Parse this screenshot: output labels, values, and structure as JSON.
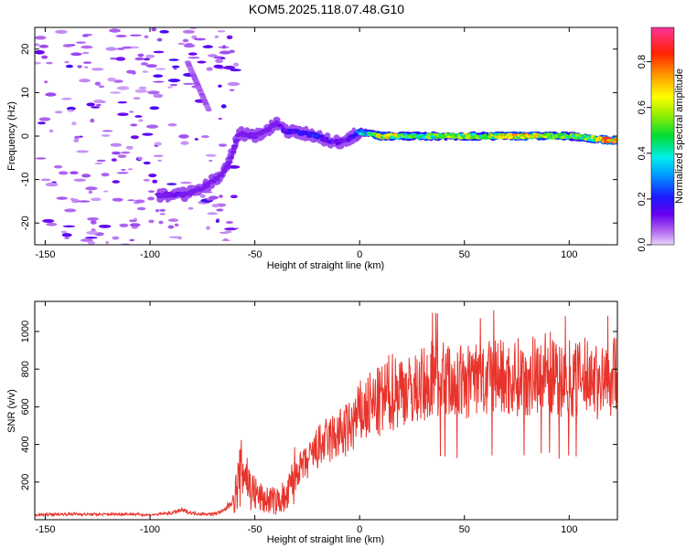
{
  "figure": {
    "title": "KOM5.2025.118.07.48.G10"
  },
  "chart_data": [
    {
      "type": "heatmap",
      "xlabel": "Height of straight line (km)",
      "ylabel": "Frequency (Hz)",
      "xlim": [
        -155,
        123
      ],
      "ylim": [
        -25,
        25
      ],
      "xticks": [
        -150,
        -100,
        -50,
        0,
        50,
        100
      ],
      "yticks": [
        -20,
        -10,
        0,
        10,
        20
      ],
      "colorbar": {
        "label": "Normalized spectral amplitude",
        "range": [
          0,
          0.95
        ],
        "ticks": [
          "0.0",
          "0.2",
          "0.4",
          "0.6",
          "0.8"
        ],
        "colormap": "rainbow (magenta-blue-cyan-green-yellow-red-pink)"
      },
      "ridge": {
        "x": [
          -95,
          -85,
          -80,
          -72,
          -66,
          -62,
          -58,
          -55,
          -50,
          -45,
          -40,
          -35,
          -30,
          -25,
          -20,
          -15,
          -10,
          -5,
          0,
          10,
          20,
          30,
          40,
          50,
          60,
          70,
          80,
          90,
          100,
          110,
          120
        ],
        "freq": [
          -13.5,
          -13.5,
          -13,
          -11,
          -9,
          -6,
          0.5,
          0.5,
          0,
          1,
          3,
          1,
          1,
          0.5,
          0,
          -1,
          -1.5,
          -0.5,
          1,
          0,
          0,
          0,
          0,
          0,
          0,
          0,
          0,
          0,
          0,
          -0.5,
          -1
        ],
        "amplitude": [
          0.1,
          0.15,
          0.1,
          0.05,
          0.05,
          0.08,
          0.1,
          0.12,
          0.1,
          0.08,
          0.06,
          0.2,
          0.2,
          0.2,
          0.25,
          0.15,
          0.15,
          0.15,
          0.3,
          0.75,
          0.6,
          0.55,
          0.55,
          0.65,
          0.6,
          0.7,
          0.75,
          0.65,
          0.55,
          0.6,
          0.85
        ]
      }
    },
    {
      "type": "line",
      "xlabel": "Height of straight line (km)",
      "ylabel": "SNR (v/v)",
      "xlim": [
        -155,
        123
      ],
      "ylim": [
        0,
        1160
      ],
      "xticks": [
        -150,
        -100,
        -50,
        0,
        50,
        100
      ],
      "yticks": [
        200,
        400,
        600,
        800,
        1000
      ],
      "color": "#e8332b",
      "series": [
        {
          "x": [
            -155,
            -140,
            -125,
            -110,
            -100,
            -90,
            -85,
            -80,
            -75,
            -70,
            -65,
            -60,
            -57,
            -55,
            -52,
            -48,
            -45,
            -42,
            -40,
            -37,
            -35,
            -32,
            -30,
            -25,
            -20,
            -15,
            -10,
            -5,
            0,
            5,
            10,
            15,
            20,
            25,
            30,
            35,
            40,
            45,
            50,
            55,
            60,
            65,
            70,
            75,
            80,
            85,
            90,
            95,
            100,
            105,
            110,
            115,
            120,
            123
          ],
          "y": [
            25,
            30,
            28,
            30,
            25,
            35,
            50,
            35,
            30,
            30,
            45,
            110,
            230,
            280,
            160,
            120,
            100,
            110,
            90,
            120,
            100,
            200,
            260,
            300,
            380,
            420,
            450,
            480,
            560,
            600,
            620,
            680,
            700,
            680,
            720,
            760,
            750,
            730,
            720,
            760,
            720,
            780,
            740,
            760,
            760,
            780,
            800,
            720,
            760,
            740,
            780,
            720,
            760,
            780
          ]
        }
      ]
    }
  ]
}
